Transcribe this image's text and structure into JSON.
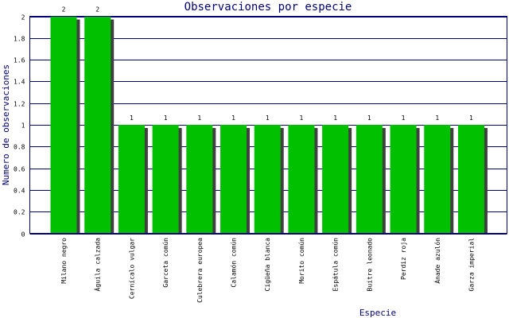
{
  "chart_data": {
    "type": "bar",
    "title": "Observaciones por especie",
    "xlabel": "Especie",
    "ylabel": "Numero de observaciones",
    "categories": [
      "Milano negro",
      "Águila calzada",
      "Cernícalo vulgar",
      "Garceta común",
      "Culebrera europea",
      "Calamón común",
      "Cigüeña blanca",
      "Morito común",
      "Espátula común",
      "Buitre leonado",
      "Perdiz roja",
      "Ánade azulón",
      "Garza imperial"
    ],
    "values": [
      2,
      2,
      1,
      1,
      1,
      1,
      1,
      1,
      1,
      1,
      1,
      1,
      1
    ],
    "value_labels": [
      "2",
      "2",
      "1",
      "1",
      "1",
      "1",
      "1",
      "1",
      "1",
      "1",
      "1",
      "1",
      "1"
    ],
    "yticks": [
      "0",
      "0.2",
      "0.4",
      "0.6",
      "0.8",
      "1",
      "1.2",
      "1.4",
      "1.6",
      "1.8",
      "2"
    ],
    "ylim": [
      0,
      2
    ],
    "grid": true,
    "colors": {
      "bar": "#00c000",
      "shadow": "#404040",
      "grid": "#000080",
      "frame": "#000080",
      "title": "#000080"
    }
  }
}
